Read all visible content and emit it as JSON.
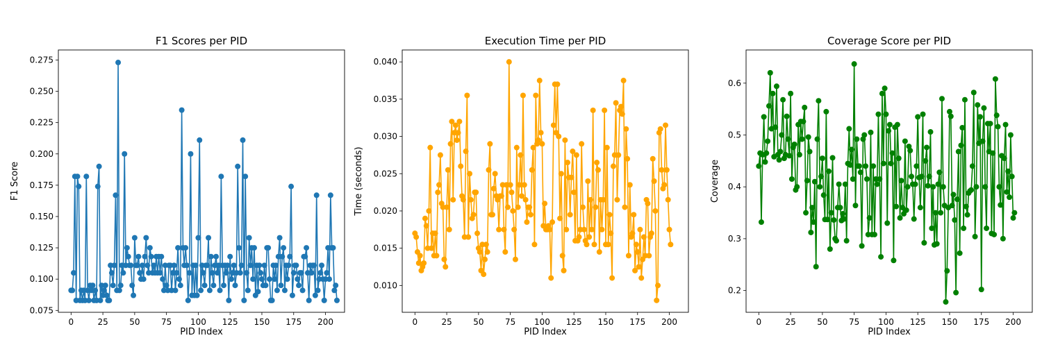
{
  "chart_data": [
    {
      "type": "line",
      "title": "F1 Scores per PID",
      "xlabel": "PID Index",
      "ylabel": "F1 Score",
      "xlim": [
        -10,
        215
      ],
      "ylim": [
        0.0735,
        0.283
      ],
      "xticks": [
        0,
        25,
        50,
        75,
        100,
        125,
        150,
        175,
        200
      ],
      "yticks": [
        0.075,
        0.1,
        0.125,
        0.15,
        0.175,
        0.2,
        0.225,
        0.25,
        0.275
      ],
      "ytick_labels": [
        "0.075",
        "0.100",
        "0.125",
        "0.150",
        "0.175",
        "0.200",
        "0.225",
        "0.250",
        "0.275"
      ],
      "grid": false,
      "color": "#1f77b4",
      "marker": "circle",
      "series": [
        {
          "x_start": 0,
          "values": [
            0.091,
            0.091,
            0.105,
            0.182,
            0.083,
            0.182,
            0.174,
            0.083,
            0.091,
            0.083,
            0.091,
            0.083,
            0.182,
            0.091,
            0.083,
            0.095,
            0.091,
            0.095,
            0.083,
            0.091,
            0.083,
            0.174,
            0.19,
            0.083,
            0.095,
            0.087,
            0.091,
            0.095,
            0.087,
            0.083,
            0.083,
            0.111,
            0.105,
            0.095,
            0.111,
            0.167,
            0.091,
            0.273,
            0.091,
            0.095,
            0.111,
            0.105,
            0.2,
            0.111,
            0.125,
            0.118,
            0.111,
            0.111,
            0.095,
            0.087,
            0.133,
            0.111,
            0.111,
            0.118,
            0.105,
            0.1,
            0.111,
            0.1,
            0.118,
            0.133,
            0.111,
            0.105,
            0.125,
            0.118,
            0.105,
            0.111,
            0.105,
            0.118,
            0.105,
            0.118,
            0.105,
            0.118,
            0.1,
            0.091,
            0.111,
            0.095,
            0.091,
            0.111,
            0.111,
            0.091,
            0.105,
            0.111,
            0.091,
            0.105,
            0.125,
            0.1,
            0.095,
            0.235,
            0.125,
            0.111,
            0.125,
            0.111,
            0.083,
            0.105,
            0.2,
            0.087,
            0.111,
            0.087,
            0.111,
            0.087,
            0.133,
            0.211,
            0.091,
            0.111,
            0.105,
            0.095,
            0.111,
            0.111,
            0.133,
            0.091,
            0.118,
            0.105,
            0.095,
            0.111,
            0.118,
            0.105,
            0.111,
            0.091,
            0.182,
            0.111,
            0.095,
            0.111,
            0.105,
            0.111,
            0.083,
            0.118,
            0.1,
            0.105,
            0.111,
            0.095,
            0.105,
            0.19,
            0.125,
            0.105,
            0.111,
            0.211,
            0.083,
            0.182,
            0.105,
            0.091,
            0.133,
            0.111,
            0.125,
            0.1,
            0.125,
            0.087,
            0.111,
            0.09,
            0.111,
            0.105,
            0.1,
            0.095,
            0.111,
            0.095,
            0.125,
            0.125,
            0.1,
            0.083,
            0.083,
            0.111,
            0.1,
            0.111,
            0.091,
            0.118,
            0.133,
            0.095,
            0.118,
            0.125,
            0.091,
            0.111,
            0.1,
            0.111,
            0.118,
            0.174,
            0.087,
            0.105,
            0.111,
            0.111,
            0.1,
            0.095,
            0.105,
            0.105,
            0.091,
            0.118,
            0.118,
            0.125,
            0.105,
            0.083,
            0.111,
            0.105,
            0.111,
            0.111,
            0.087,
            0.167,
            0.091,
            0.1,
            0.105,
            0.111,
            0.1,
            0.083,
            0.1,
            0.105,
            0.125,
            0.1,
            0.167,
            0.125,
            0.125,
            0.091,
            0.095,
            0.083
          ]
        }
      ]
    },
    {
      "type": "line",
      "title": "Execution Time per PID",
      "xlabel": "PID Index",
      "ylabel": "Time (seconds)",
      "xlim": [
        -10,
        215
      ],
      "ylim": [
        0.0064,
        0.0416
      ],
      "xticks": [
        0,
        25,
        50,
        75,
        100,
        125,
        150,
        175,
        200
      ],
      "yticks": [
        0.01,
        0.015,
        0.02,
        0.025,
        0.03,
        0.035,
        0.04
      ],
      "ytick_labels": [
        "0.010",
        "0.015",
        "0.020",
        "0.025",
        "0.030",
        "0.035",
        "0.040"
      ],
      "grid": false,
      "color": "#ffa500",
      "marker": "circle",
      "series": [
        {
          "x_start": 0,
          "values": [
            0.017,
            0.0165,
            0.0145,
            0.013,
            0.014,
            0.012,
            0.0125,
            0.013,
            0.019,
            0.018,
            0.015,
            0.02,
            0.0285,
            0.015,
            0.017,
            0.014,
            0.017,
            0.014,
            0.0225,
            0.0235,
            0.0275,
            0.021,
            0.0205,
            0.0135,
            0.0125,
            0.0205,
            0.0255,
            0.0175,
            0.029,
            0.032,
            0.0215,
            0.0305,
            0.0315,
            0.0295,
            0.0305,
            0.032,
            0.026,
            0.022,
            0.0215,
            0.0165,
            0.028,
            0.0355,
            0.0165,
            0.025,
            0.0215,
            0.019,
            0.0195,
            0.0225,
            0.0225,
            0.017,
            0.015,
            0.0145,
            0.012,
            0.0155,
            0.0115,
            0.0135,
            0.0155,
            0.0145,
            0.0255,
            0.029,
            0.0195,
            0.0195,
            0.023,
            0.025,
            0.022,
            0.0215,
            0.0175,
            0.022,
            0.022,
            0.0235,
            0.0175,
            0.0145,
            0.0235,
            0.0205,
            0.04,
            0.0235,
            0.0225,
            0.02,
            0.0175,
            0.0135,
            0.0285,
            0.0205,
            0.0235,
            0.0275,
            0.022,
            0.0355,
            0.0235,
            0.0215,
            0.0185,
            0.0205,
            0.0205,
            0.0195,
            0.0255,
            0.0285,
            0.0155,
            0.0355,
            0.029,
            0.0295,
            0.0375,
            0.0305,
            0.029,
            0.018,
            0.021,
            0.0175,
            0.0175,
            0.018,
            0.0175,
            0.011,
            0.0185,
            0.0315,
            0.037,
            0.0305,
            0.037,
            0.03,
            0.019,
            0.025,
            0.014,
            0.012,
            0.0295,
            0.0175,
            0.0265,
            0.0245,
            0.0195,
            0.0245,
            0.028,
            0.0225,
            0.016,
            0.0275,
            0.016,
            0.0165,
            0.0175,
            0.029,
            0.0205,
            0.0175,
            0.016,
            0.0155,
            0.024,
            0.0165,
            0.0215,
            0.0175,
            0.0335,
            0.0155,
            0.0205,
            0.0265,
            0.0255,
            0.0145,
            0.0215,
            0.0175,
            0.0215,
            0.0335,
            0.0155,
            0.0285,
            0.0155,
            0.0195,
            0.017,
            0.011,
            0.026,
            0.0275,
            0.0345,
            0.0215,
            0.0275,
            0.0335,
            0.034,
            0.033,
            0.0375,
            0.0205,
            0.031,
            0.027,
            0.014,
            0.0235,
            0.0165,
            0.017,
            0.0195,
            0.012,
            0.0155,
            0.0145,
            0.0125,
            0.0175,
            0.011,
            0.0135,
            0.0165,
            0.014,
            0.0215,
            0.021,
            0.014,
            0.0165,
            0.017,
            0.027,
            0.024,
            0.02,
            0.008,
            0.01,
            0.0305,
            0.031,
            0.0255,
            0.023,
            0.0235,
            0.0315,
            0.0255,
            0.0215,
            0.0175,
            0.0155
          ]
        }
      ]
    },
    {
      "type": "line",
      "title": "Coverage Score per PID",
      "xlabel": "PID Index",
      "ylabel": "Coverage",
      "xlim": [
        -10,
        215
      ],
      "ylim": [
        0.158,
        0.664
      ],
      "xticks": [
        0,
        25,
        50,
        75,
        100,
        125,
        150,
        175,
        200
      ],
      "yticks": [
        0.2,
        0.3,
        0.4,
        0.5,
        0.6
      ],
      "ytick_labels": [
        "0.2",
        "0.3",
        "0.4",
        "0.5",
        "0.6"
      ],
      "grid": false,
      "color": "#008000",
      "marker": "circle",
      "series": [
        {
          "x_start": 0,
          "values": [
            0.44,
            0.465,
            0.332,
            0.462,
            0.535,
            0.448,
            0.465,
            0.488,
            0.556,
            0.62,
            0.512,
            0.58,
            0.458,
            0.515,
            0.594,
            0.462,
            0.452,
            0.468,
            0.5,
            0.568,
            0.455,
            0.462,
            0.536,
            0.492,
            0.46,
            0.58,
            0.415,
            0.476,
            0.482,
            0.394,
            0.4,
            0.52,
            0.462,
            0.526,
            0.492,
            0.526,
            0.553,
            0.35,
            0.412,
            0.496,
            0.468,
            0.312,
            0.36,
            0.332,
            0.41,
            0.246,
            0.492,
            0.566,
            0.4,
            0.42,
            0.455,
            0.384,
            0.337,
            0.545,
            0.337,
            0.43,
            0.28,
            0.35,
            0.456,
            0.336,
            0.3,
            0.296,
            0.36,
            0.405,
            0.36,
            0.335,
            0.348,
            0.338,
            0.405,
            0.296,
            0.445,
            0.512,
            0.442,
            0.472,
            0.415,
            0.637,
            0.364,
            0.492,
            0.44,
            0.44,
            0.428,
            0.286,
            0.492,
            0.5,
            0.44,
            0.415,
            0.308,
            0.34,
            0.505,
            0.308,
            0.44,
            0.308,
            0.415,
            0.405,
            0.54,
            0.415,
            0.265,
            0.58,
            0.445,
            0.59,
            0.54,
            0.33,
            0.508,
            0.52,
            0.445,
            0.465,
            0.258,
            0.515,
            0.362,
            0.52,
            0.455,
            0.34,
            0.412,
            0.36,
            0.348,
            0.488,
            0.355,
            0.4,
            0.478,
            0.47,
            0.42,
            0.405,
            0.338,
            0.405,
            0.44,
            0.535,
            0.418,
            0.36,
            0.42,
            0.54,
            0.292,
            0.45,
            0.476,
            0.402,
            0.42,
            0.506,
            0.32,
            0.4,
            0.288,
            0.35,
            0.29,
            0.405,
            0.428,
            0.35,
            0.57,
            0.4,
            0.364,
            0.178,
            0.238,
            0.36,
            0.545,
            0.536,
            0.364,
            0.385,
            0.336,
            0.196,
            0.376,
            0.468,
            0.272,
            0.48,
            0.514,
            0.32,
            0.568,
            0.362,
            0.346,
            0.388,
            0.392,
            0.394,
            0.44,
            0.582,
            0.304,
            0.4,
            0.558,
            0.484,
            0.535,
            0.202,
            0.488,
            0.552,
            0.4,
            0.32,
            0.522,
            0.468,
            0.522,
            0.31,
            0.465,
            0.308,
            0.608,
            0.538,
            0.516,
            0.4,
            0.365,
            0.46,
            0.3,
            0.455,
            0.52,
            0.39,
            0.43,
            0.38,
            0.5,
            0.42,
            0.34,
            0.35
          ]
        }
      ]
    }
  ]
}
